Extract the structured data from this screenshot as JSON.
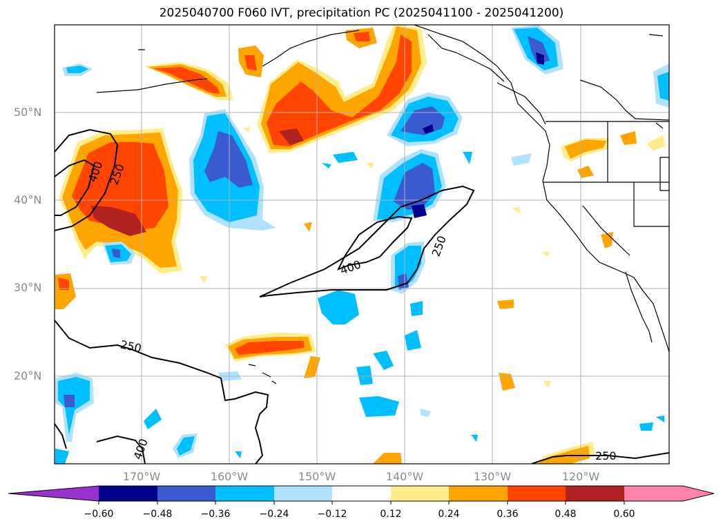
{
  "title": "2025040700 F060 IVT, precipitation PC (2025041100 - 2025041200)",
  "latitude_labels": [
    "50°N",
    "40°N",
    "30°N",
    "20°N"
  ],
  "longitude_labels": [
    "170°W",
    "160°W",
    "150°W",
    "140°W",
    "130°W",
    "120°W"
  ],
  "contour_labels": [
    "400",
    "250",
    "400",
    "250",
    "250",
    "400",
    "250"
  ],
  "colorbar": {
    "ticks": [
      "−0.60",
      "−0.48",
      "−0.36",
      "−0.24",
      "−0.12",
      "0.12",
      "0.24",
      "0.36",
      "0.48",
      "0.60"
    ],
    "colors": [
      "#9932cc",
      "#00008b",
      "#3a5bd0",
      "#00bfff",
      "#b0e2ff",
      "#ffffff",
      "#ffec8b",
      "#ffa500",
      "#ff4500",
      "#b22222",
      "#ff82ab"
    ]
  }
}
